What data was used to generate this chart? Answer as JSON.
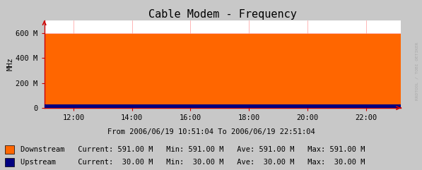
{
  "title": "Cable Modem - Frequency",
  "ylabel": "MHz",
  "xlabel_date": "From 2006/06/19 10:51:04 To 2006/06/19 22:51:04",
  "watermark": "RRDTOOL / TOBI OETIKER",
  "x_ticks": [
    12,
    14,
    16,
    18,
    20,
    22
  ],
  "x_tick_labels": [
    "12:00",
    "14:00",
    "16:00",
    "18:00",
    "20:00",
    "22:00"
  ],
  "x_min": 11.0,
  "x_max": 23.2,
  "y_min": 0,
  "y_max": 700,
  "y_ticks": [
    0,
    200,
    400,
    600
  ],
  "y_tick_labels": [
    "0",
    "200 M",
    "400 M",
    "600 M"
  ],
  "downstream_value": 591.0,
  "upstream_value": 30.0,
  "downstream_color": "#FF6600",
  "upstream_color": "#000080",
  "grid_color": "#FF9999",
  "bg_color": "#C8C8C8",
  "plot_bg_color": "#FFFFFF",
  "legend": [
    {
      "label": "Downstream",
      "color": "#FF6600",
      "current": "591.00 M",
      "min": "591.00 M",
      "ave": "591.00 M",
      "max": "591.00 M"
    },
    {
      "label": "Upstream",
      "color": "#000080",
      "current": " 30.00 M",
      "min": " 30.00 M",
      "ave": " 30.00 M",
      "max": " 30.00 M"
    }
  ],
  "title_fontsize": 11,
  "axis_fontsize": 7.5,
  "legend_fontsize": 7.5,
  "watermark_color": "#AAAAAA",
  "arrow_color": "#CC0000",
  "spine_color": "#CC0000"
}
